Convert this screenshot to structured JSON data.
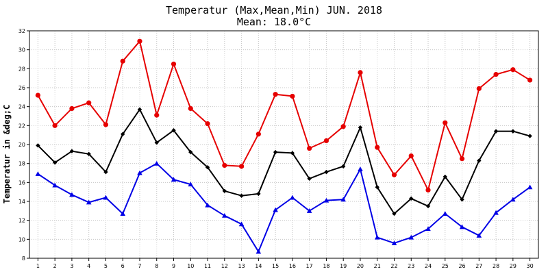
{
  "chart_data": {
    "type": "line",
    "title": "Temperatur (Max,Mean,Min) JUN. 2018",
    "subtitle": "Mean: 18.0°C",
    "xlabel": "",
    "ylabel": "Temperatur in &deg;C",
    "ylim": [
      8,
      32
    ],
    "yticks": [
      "8",
      "10",
      "12",
      "14",
      "16",
      "18",
      "20",
      "22",
      "24",
      "26",
      "28",
      "30",
      "32"
    ],
    "categories": [
      "1",
      "2",
      "3",
      "4",
      "5",
      "6",
      "7",
      "8",
      "9",
      "10",
      "11",
      "12",
      "13",
      "14",
      "15",
      "16",
      "17",
      "18",
      "19",
      "20",
      "21",
      "22",
      "23",
      "24",
      "25",
      "26",
      "27",
      "28",
      "29",
      "30"
    ],
    "grid": true,
    "series": [
      {
        "color": "#e60000",
        "marker": "circle",
        "values": [
          25.2,
          22.0,
          23.8,
          24.4,
          22.1,
          28.8,
          30.9,
          23.1,
          28.5,
          23.8,
          22.2,
          17.8,
          17.7,
          21.1,
          25.3,
          25.1,
          19.6,
          20.4,
          21.9,
          27.6,
          19.7,
          16.8,
          18.8,
          15.2,
          22.3,
          18.5,
          25.9,
          27.4,
          27.9,
          26.8
        ]
      },
      {
        "color": "#000000",
        "marker": "diamond",
        "values": [
          19.9,
          18.1,
          19.3,
          19.0,
          17.1,
          21.1,
          23.7,
          20.2,
          21.5,
          19.2,
          17.6,
          15.1,
          14.6,
          14.8,
          19.2,
          19.1,
          16.4,
          17.1,
          17.7,
          21.8,
          15.5,
          12.7,
          14.3,
          13.5,
          16.6,
          14.2,
          18.3,
          21.4,
          21.4,
          20.9
        ]
      },
      {
        "color": "#0000e6",
        "marker": "triangle",
        "values": [
          16.9,
          15.7,
          14.7,
          13.9,
          14.4,
          12.7,
          17.0,
          18.0,
          16.3,
          15.8,
          13.6,
          12.5,
          11.6,
          8.7,
          13.1,
          14.4,
          13.0,
          14.1,
          14.2,
          17.4,
          10.2,
          9.6,
          10.2,
          11.1,
          12.7,
          11.3,
          10.4,
          12.8,
          14.2,
          15.5
        ]
      }
    ]
  }
}
